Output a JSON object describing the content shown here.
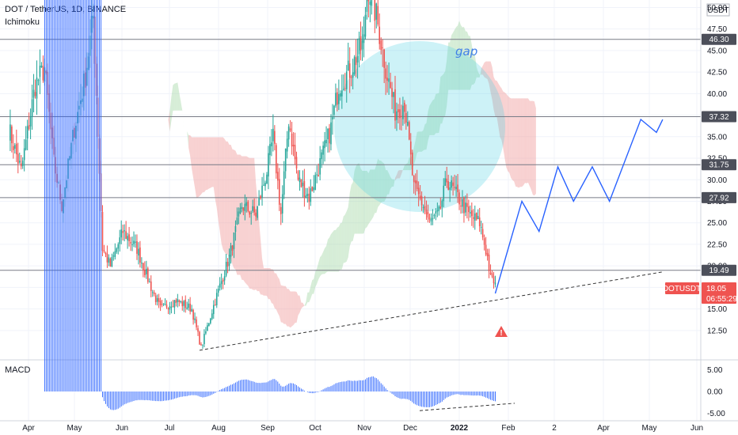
{
  "header": {
    "symbol_line": "DOT / TetherUS, 1D, BINANCE",
    "indicator": "Ichimoku",
    "currency": "USDT",
    "macd_label": "MACD"
  },
  "colors": {
    "up": "#26a69a",
    "down": "#ef5350",
    "cloud_green": "#a5d6a7",
    "cloud_red": "#ef9a9a",
    "forecast": "#2962ff",
    "gap_circle": "#4dd0e1",
    "level_line": "#787b86",
    "price_tag": "#ef5350",
    "macd_bar": "#2962ff"
  },
  "chart_data": {
    "type": "candlestick",
    "title": "DOT / TetherUS, 1D, BINANCE",
    "y_axis": {
      "ticks": [
        "50.00",
        "47.50",
        "45.00",
        "42.50",
        "40.00",
        "37.50",
        "35.00",
        "32.50",
        "30.00",
        "27.50",
        "25.00",
        "22.50",
        "20.00",
        "17.50",
        "15.00",
        "12.50"
      ],
      "range": [
        9.5,
        50.5
      ]
    },
    "x_axis": {
      "ticks": [
        "Apr",
        "May",
        "Jun",
        "Jul",
        "Aug",
        "Sep",
        "Oct",
        "Nov",
        "Dec",
        "2022",
        "Feb",
        "2",
        "Apr",
        "May",
        "Jun"
      ]
    },
    "levels": [
      {
        "value": 46.3,
        "label": "46.30"
      },
      {
        "value": 37.32,
        "label": "37.32"
      },
      {
        "value": 31.75,
        "label": "31.75"
      },
      {
        "value": 27.92,
        "label": "27.92"
      },
      {
        "value": 19.49,
        "label": "19.49"
      }
    ],
    "current_price": {
      "symbol": "DOTUSDT",
      "value": "18.05",
      "countdown": "06:55:29"
    },
    "price_path": [
      [
        "2021-03-20",
        36.0
      ],
      [
        "2021-03-28",
        31.0
      ],
      [
        "2021-04-06",
        41.0
      ],
      [
        "2021-04-12",
        43.0
      ],
      [
        "2021-04-18",
        32.0
      ],
      [
        "2021-04-23",
        27.0
      ],
      [
        "2021-05-01",
        36.0
      ],
      [
        "2021-05-08",
        42.0
      ],
      [
        "2021-05-13",
        49.0
      ],
      [
        "2021-05-19",
        22.0
      ],
      [
        "2021-05-24",
        20.0
      ],
      [
        "2021-06-01",
        24.0
      ],
      [
        "2021-06-10",
        22.0
      ],
      [
        "2021-06-20",
        17.0
      ],
      [
        "2021-06-25",
        15.0
      ],
      [
        "2021-07-05",
        16.0
      ],
      [
        "2021-07-15",
        15.0
      ],
      [
        "2021-07-21",
        10.5
      ],
      [
        "2021-07-30",
        16.0
      ],
      [
        "2021-08-08",
        21.0
      ],
      [
        "2021-08-16",
        27.0
      ],
      [
        "2021-08-25",
        26.0
      ],
      [
        "2021-09-01",
        31.0
      ],
      [
        "2021-09-05",
        35.0
      ],
      [
        "2021-09-10",
        26.0
      ],
      [
        "2021-09-15",
        37.0
      ],
      [
        "2021-09-21",
        30.0
      ],
      [
        "2021-09-28",
        28.0
      ],
      [
        "2021-10-07",
        33.0
      ],
      [
        "2021-10-12",
        36.0
      ],
      [
        "2021-10-17",
        41.0
      ],
      [
        "2021-10-25",
        43.0
      ],
      [
        "2021-11-02",
        46.0
      ],
      [
        "2021-11-04",
        53.0
      ],
      [
        "2021-11-10",
        49.0
      ],
      [
        "2021-11-16",
        43.0
      ],
      [
        "2021-11-22",
        38.0
      ],
      [
        "2021-11-28",
        39.0
      ],
      [
        "2021-12-04",
        29.0
      ],
      [
        "2021-12-10",
        27.0
      ],
      [
        "2021-12-14",
        25.0
      ],
      [
        "2021-12-20",
        26.0
      ],
      [
        "2021-12-25",
        30.0
      ],
      [
        "2022-01-01",
        28.0
      ],
      [
        "2022-01-08",
        26.0
      ],
      [
        "2022-01-15",
        25.0
      ],
      [
        "2022-01-20",
        21.0
      ],
      [
        "2022-01-22",
        18.5
      ],
      [
        "2022-01-25",
        18.05
      ]
    ],
    "forecast": [
      [
        "2022-01-25",
        16.8
      ],
      [
        "2022-02-11",
        27.5
      ],
      [
        "2022-02-22",
        24.0
      ],
      [
        "2022-03-06",
        31.5
      ],
      [
        "2022-03-16",
        27.5
      ],
      [
        "2022-03-28",
        31.5
      ],
      [
        "2022-04-08",
        27.5
      ],
      [
        "2022-04-28",
        37.0
      ],
      [
        "2022-05-08",
        35.5
      ],
      [
        "2022-05-12",
        37.0
      ]
    ],
    "trendline": [
      [
        "2021-07-20",
        10.2
      ],
      [
        "2022-05-12",
        19.3
      ]
    ],
    "annotation": {
      "text": "gap"
    },
    "macd": {
      "ticks": [
        "5.00",
        "0.00",
        "-5.00"
      ],
      "range": [
        -6,
        6
      ]
    }
  }
}
